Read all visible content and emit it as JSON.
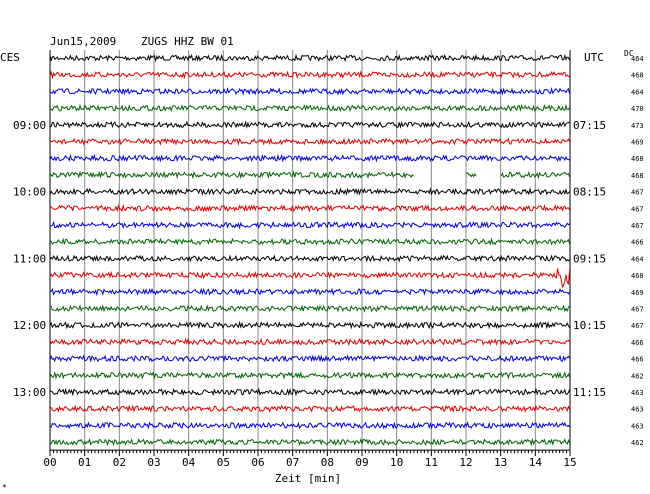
{
  "header": {
    "date": "Jun15,2009",
    "station": "ZUGS HHZ BW 01",
    "left_tz": "CES",
    "right_tz": "UTC",
    "dc_label": "DC"
  },
  "chart_data": {
    "type": "line",
    "title": "Jun15,2009   ZUGS HHZ BW 01",
    "xlabel": "Zeit [min]",
    "xlim": [
      0,
      15
    ],
    "x_ticks": [
      "00",
      "01",
      "02",
      "03",
      "04",
      "05",
      "06",
      "07",
      "08",
      "09",
      "10",
      "11",
      "12",
      "13",
      "14",
      "15"
    ],
    "grid": true,
    "local_time_labels": [
      {
        "row": 4,
        "label": "09:00"
      },
      {
        "row": 8,
        "label": "10:00"
      },
      {
        "row": 12,
        "label": "11:00"
      },
      {
        "row": 16,
        "label": "12:00"
      },
      {
        "row": 20,
        "label": "13:00"
      }
    ],
    "utc_time_labels": [
      {
        "row": 4,
        "label": "07:15"
      },
      {
        "row": 8,
        "label": "08:15"
      },
      {
        "row": 12,
        "label": "09:15"
      },
      {
        "row": 16,
        "label": "10:15"
      },
      {
        "row": 20,
        "label": "11:15"
      }
    ],
    "trace_colors": [
      "#000000",
      "#e00000",
      "#0000e0",
      "#006400"
    ],
    "dc_offsets": [
      464,
      468,
      464,
      470,
      473,
      469,
      468,
      468,
      467,
      467,
      467,
      466,
      464,
      468,
      469,
      467,
      467,
      466,
      466,
      462,
      463,
      463,
      463,
      462
    ],
    "gaps": [
      {
        "row": 7,
        "from_min": 10.5,
        "to_min": 12.0
      },
      {
        "row": 7,
        "from_min": 12.3,
        "to_min": 13.0
      }
    ],
    "events": [
      {
        "row": 13,
        "at_min": 14.8,
        "amplitude": "large"
      }
    ]
  },
  "footer": {
    "corner_mark": "*"
  }
}
